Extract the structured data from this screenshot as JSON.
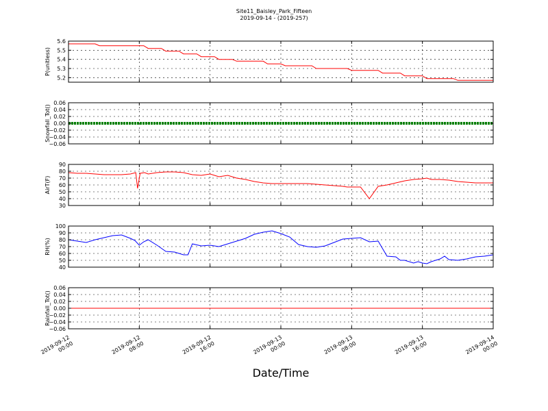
{
  "figure": {
    "title": "Site11_Baisley_Park_Fifteen",
    "subtitle": "2019-09-14 - (2019-257)",
    "xlabel": "Date/Time"
  },
  "chart_data": [
    {
      "type": "line",
      "ylabel": "P(unitless)",
      "ylim": [
        5.15,
        5.6
      ],
      "yticks": [
        "5.2",
        "5.3",
        "5.4",
        "5.5",
        "5.6"
      ],
      "ytick_values": [
        5.2,
        5.3,
        5.4,
        5.5,
        5.6
      ],
      "xlim": [
        0,
        48
      ],
      "xtick_labels": [
        [
          "2019-09-12",
          "00:00"
        ],
        [
          "2019-09-12",
          "08:00"
        ],
        [
          "2019-09-12",
          "16:00"
        ],
        [
          "2019-09-13",
          "00:00"
        ],
        [
          "2019-09-13",
          "08:00"
        ],
        [
          "2019-09-13",
          "16:00"
        ],
        [
          "2019-09-14",
          "00:00"
        ]
      ],
      "grid": true,
      "series": [
        {
          "color": "#ff0000",
          "x": [
            0,
            0.5,
            1,
            1.5,
            2,
            2.5,
            3,
            3.5,
            4,
            4.5,
            5,
            5.5,
            6,
            6.5,
            7,
            7.5,
            8,
            8.5,
            9,
            9.5,
            10,
            10.5,
            11,
            11.5,
            12,
            12.5,
            13,
            13.5,
            14,
            14.5,
            15,
            15.5,
            16,
            16.5,
            17,
            17.5,
            18,
            18.5,
            19,
            19.5,
            20,
            20.5,
            21,
            21.5,
            22,
            22.5,
            23,
            23.5,
            24,
            24.5,
            25,
            25.5,
            26,
            26.5,
            27,
            27.5,
            28,
            28.5,
            29,
            29.5,
            30,
            30.5,
            31,
            31.5,
            32,
            32.5,
            33,
            33.5,
            34,
            34.5,
            35,
            35.5,
            36,
            36.5,
            37,
            37.5,
            38,
            38.5,
            39,
            39.5,
            40,
            40.5,
            41,
            41.5,
            42,
            42.5,
            43,
            43.5,
            44,
            44.5,
            45,
            45.5,
            46,
            46.5,
            47,
            47.5,
            48
          ],
          "y": [
            5.57,
            5.57,
            5.57,
            5.57,
            5.57,
            5.57,
            5.57,
            5.55,
            5.55,
            5.55,
            5.55,
            5.55,
            5.55,
            5.55,
            5.55,
            5.55,
            5.55,
            5.55,
            5.52,
            5.52,
            5.52,
            5.52,
            5.49,
            5.49,
            5.49,
            5.49,
            5.46,
            5.46,
            5.46,
            5.46,
            5.43,
            5.43,
            5.43,
            5.43,
            5.4,
            5.4,
            5.4,
            5.4,
            5.38,
            5.38,
            5.38,
            5.38,
            5.38,
            5.38,
            5.38,
            5.35,
            5.35,
            5.35,
            5.35,
            5.33,
            5.33,
            5.33,
            5.33,
            5.33,
            5.33,
            5.33,
            5.3,
            5.3,
            5.3,
            5.3,
            5.3,
            5.3,
            5.3,
            5.3,
            5.28,
            5.28,
            5.28,
            5.28,
            5.28,
            5.28,
            5.28,
            5.25,
            5.25,
            5.25,
            5.25,
            5.25,
            5.22,
            5.22,
            5.22,
            5.22,
            5.22,
            5.19,
            5.19,
            5.19,
            5.19,
            5.19,
            5.19,
            5.19,
            5.17,
            5.17,
            5.17,
            5.17,
            5.17,
            5.17,
            5.17,
            5.17,
            5.17
          ]
        }
      ]
    },
    {
      "type": "line",
      "ylabel": "Snowfall_Tot()",
      "ylim": [
        -0.06,
        0.06
      ],
      "yticks": [
        "−0.06",
        "−0.04",
        "−0.02",
        "0.00",
        "0.02",
        "0.04",
        "0.06"
      ],
      "ytick_values": [
        -0.06,
        -0.04,
        -0.02,
        0.0,
        0.02,
        0.04,
        0.06
      ],
      "xlim": [
        0,
        48
      ],
      "xtick_labels": [
        [
          "2019-09-12",
          "00:00"
        ],
        [
          "2019-09-12",
          "08:00"
        ],
        [
          "2019-09-12",
          "16:00"
        ],
        [
          "2019-09-13",
          "00:00"
        ],
        [
          "2019-09-13",
          "08:00"
        ],
        [
          "2019-09-13",
          "16:00"
        ],
        [
          "2019-09-14",
          "00:00"
        ]
      ],
      "grid": true,
      "series": [
        {
          "color": "#008000",
          "x": [
            0,
            48
          ],
          "y": [
            0,
            0
          ]
        }
      ]
    },
    {
      "type": "line",
      "ylabel": "AirT(F)",
      "ylim": [
        30,
        90
      ],
      "yticks": [
        "30",
        "40",
        "50",
        "60",
        "70",
        "80",
        "90"
      ],
      "ytick_values": [
        30,
        40,
        50,
        60,
        70,
        80,
        90
      ],
      "xlim": [
        0,
        48
      ],
      "xtick_labels": [
        [
          "2019-09-12",
          "00:00"
        ],
        [
          "2019-09-12",
          "08:00"
        ],
        [
          "2019-09-12",
          "16:00"
        ],
        [
          "2019-09-13",
          "00:00"
        ],
        [
          "2019-09-13",
          "08:00"
        ],
        [
          "2019-09-13",
          "16:00"
        ],
        [
          "2019-09-14",
          "00:00"
        ]
      ],
      "grid": true,
      "series": [
        {
          "color": "#ff0000",
          "x": [
            0,
            1,
            2,
            3,
            4,
            5,
            6,
            7,
            7.6,
            7.8,
            8.1,
            8.6,
            9,
            10,
            11,
            12,
            13,
            14,
            15,
            16,
            17,
            18,
            19,
            20,
            21,
            22,
            23,
            24,
            25,
            26,
            27,
            28,
            29,
            30,
            31,
            31.5,
            31.8,
            32,
            32.5,
            33,
            34,
            35,
            36,
            37,
            38,
            39,
            40,
            40.5,
            41,
            42,
            43,
            44,
            45,
            46,
            47,
            48
          ],
          "y": [
            78,
            77,
            77,
            76,
            75,
            75,
            75,
            76,
            78,
            55,
            77,
            78,
            76,
            78,
            79,
            79,
            78,
            75,
            74,
            76,
            72,
            74,
            70,
            68,
            65,
            63,
            62,
            62,
            62,
            62,
            62,
            61,
            60,
            59,
            58,
            57,
            57,
            57,
            57,
            57,
            40,
            58,
            60,
            63,
            66,
            68,
            69,
            70,
            68,
            68,
            67,
            65,
            64,
            63,
            63,
            63
          ]
        }
      ]
    },
    {
      "type": "line",
      "ylabel": "RH(%)",
      "ylim": [
        40,
        100
      ],
      "yticks": [
        "40",
        "50",
        "60",
        "70",
        "80",
        "90",
        "100"
      ],
      "ytick_values": [
        40,
        50,
        60,
        70,
        80,
        90,
        100
      ],
      "xlim": [
        0,
        48
      ],
      "xtick_labels": [
        [
          "2019-09-12",
          "00:00"
        ],
        [
          "2019-09-12",
          "08:00"
        ],
        [
          "2019-09-12",
          "16:00"
        ],
        [
          "2019-09-13",
          "00:00"
        ],
        [
          "2019-09-13",
          "08:00"
        ],
        [
          "2019-09-13",
          "16:00"
        ],
        [
          "2019-09-14",
          "00:00"
        ]
      ],
      "grid": true,
      "series": [
        {
          "color": "#0000ff",
          "x": [
            0,
            1,
            2,
            3,
            4,
            5,
            6,
            7,
            7.5,
            8,
            8.5,
            9,
            10,
            11,
            12,
            13,
            13.5,
            14,
            15,
            16,
            17,
            18,
            19,
            20,
            21,
            22,
            23,
            24,
            25,
            26,
            27,
            28,
            29,
            30,
            31,
            32,
            33,
            34,
            35,
            36,
            37,
            37.5,
            38,
            39,
            39.5,
            40,
            40.5,
            41,
            42,
            42.5,
            43,
            44,
            45,
            46,
            47,
            48
          ],
          "y": [
            80,
            78,
            76,
            80,
            83,
            86,
            87,
            82,
            79,
            72,
            77,
            80,
            72,
            63,
            62,
            58,
            58,
            74,
            71,
            72,
            70,
            74,
            78,
            82,
            88,
            91,
            93,
            89,
            84,
            73,
            70,
            69,
            71,
            76,
            81,
            82,
            83,
            77,
            78,
            56,
            55,
            50,
            50,
            46,
            48,
            46,
            45,
            48,
            52,
            56,
            51,
            50,
            52,
            55,
            56,
            58
          ]
        }
      ]
    },
    {
      "type": "line",
      "ylabel": "Rainfall_Tot()",
      "ylim": [
        -0.06,
        0.06
      ],
      "yticks": [
        "−0.06",
        "−0.04",
        "−0.02",
        "0.00",
        "0.02",
        "0.04",
        "0.06"
      ],
      "ytick_values": [
        -0.06,
        -0.04,
        -0.02,
        0.0,
        0.02,
        0.04,
        0.06
      ],
      "xlim": [
        0,
        48
      ],
      "xtick_labels": [
        [
          "2019-09-12",
          "00:00"
        ],
        [
          "2019-09-12",
          "08:00"
        ],
        [
          "2019-09-12",
          "16:00"
        ],
        [
          "2019-09-13",
          "00:00"
        ],
        [
          "2019-09-13",
          "08:00"
        ],
        [
          "2019-09-13",
          "16:00"
        ],
        [
          "2019-09-14",
          "00:00"
        ]
      ],
      "grid": true,
      "series": [
        {
          "color": "#ff0000",
          "x": [
            0,
            48
          ],
          "y": [
            0,
            0
          ]
        }
      ]
    }
  ]
}
